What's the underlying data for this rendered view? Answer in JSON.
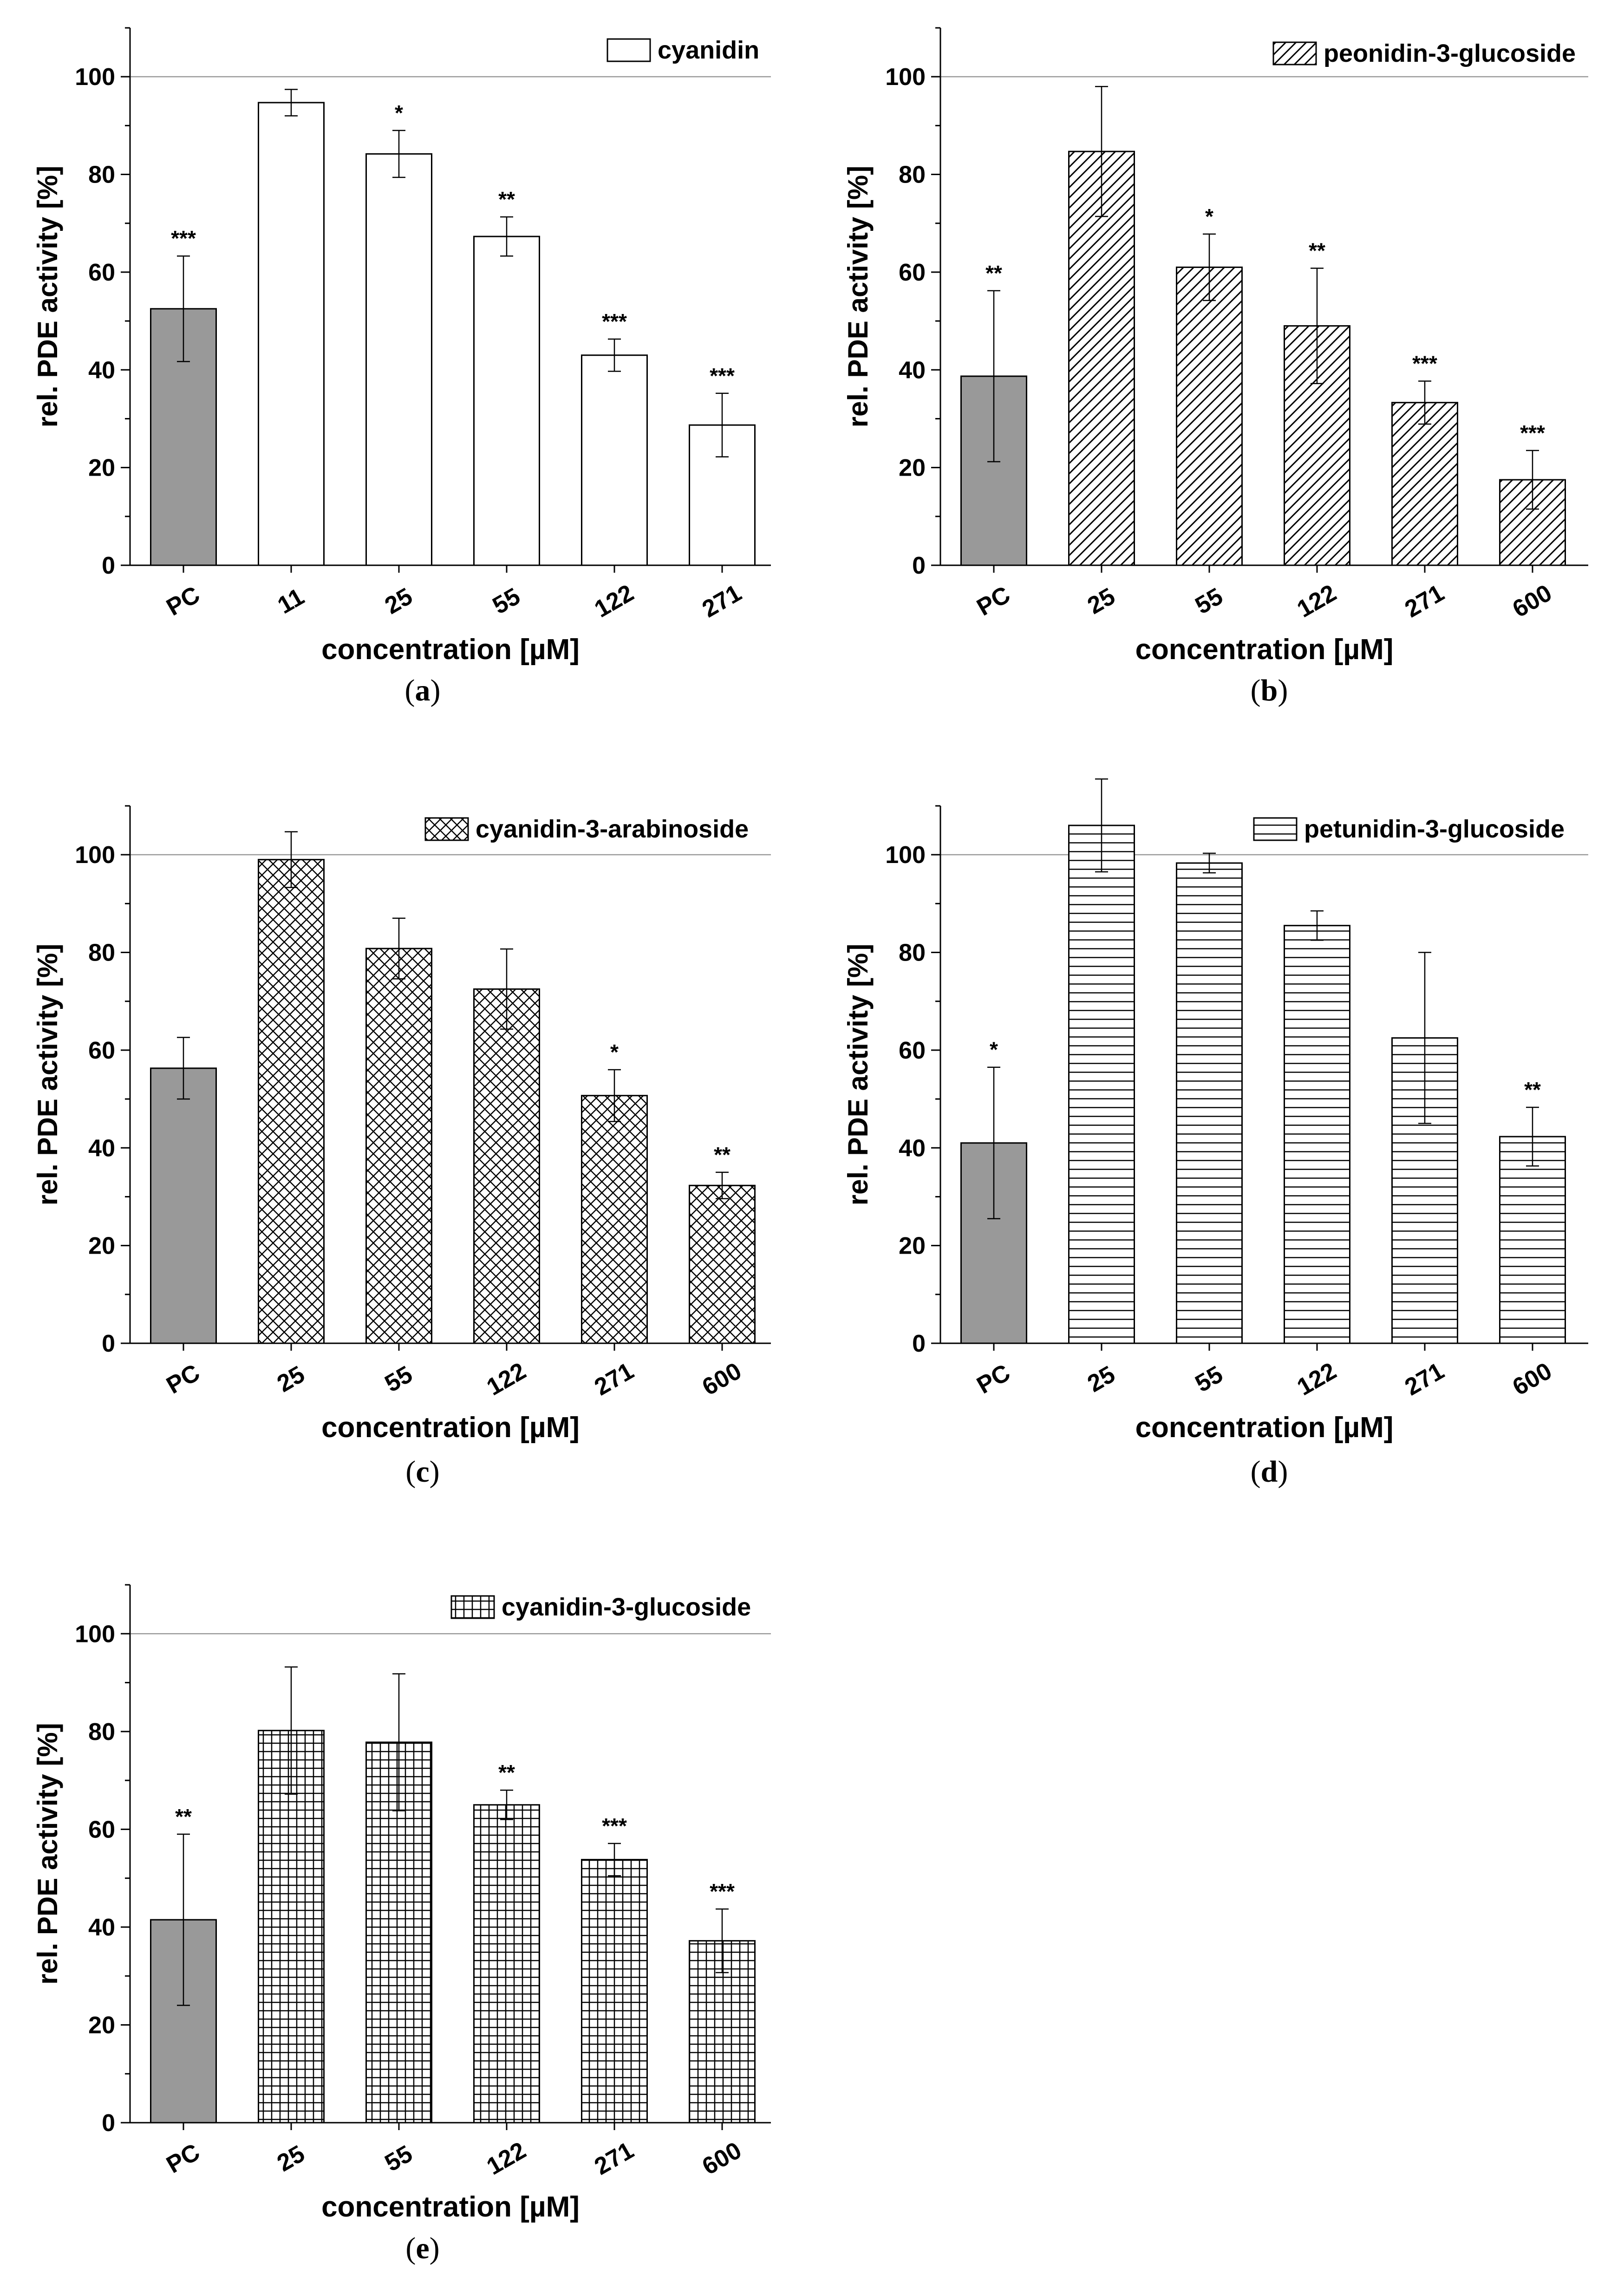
{
  "chart_data": [
    {
      "type": "bar",
      "panel_label": "a",
      "legend": "cyanidin",
      "pattern": "none",
      "categories": [
        "PC",
        "11",
        "25",
        "55",
        "122",
        "271"
      ],
      "values": [
        52.5,
        94.7,
        84.2,
        67.3,
        43.0,
        28.7
      ],
      "errors": [
        10.8,
        2.7,
        4.8,
        4.0,
        3.3,
        6.5
      ],
      "significance": [
        "***",
        "",
        "*",
        "**",
        "***",
        "***"
      ],
      "xlabel": "concentration [µM]",
      "ylabel": "rel. PDE activity [%]",
      "ylim": [
        0,
        110
      ],
      "yticks": [
        "0",
        "20",
        "40",
        "60",
        "80",
        "100"
      ],
      "reference_line": 100
    },
    {
      "type": "bar",
      "panel_label": "b",
      "legend": "peonidin-3-glucoside",
      "pattern": "diagonal",
      "categories": [
        "PC",
        "25",
        "55",
        "122",
        "271",
        "600"
      ],
      "values": [
        38.7,
        84.7,
        61.0,
        49.0,
        33.3,
        17.5
      ],
      "errors": [
        17.5,
        13.3,
        6.8,
        11.8,
        4.4,
        6.0
      ],
      "significance": [
        "**",
        "",
        "*",
        "**",
        "***",
        "***"
      ],
      "xlabel": "concentration [µM]",
      "ylabel": "rel. PDE activity [%]",
      "ylim": [
        0,
        110
      ],
      "yticks": [
        "0",
        "20",
        "40",
        "60",
        "80",
        "100"
      ],
      "reference_line": 100
    },
    {
      "type": "bar",
      "panel_label": "c",
      "legend": "cyanidin-3-arabinoside",
      "pattern": "crosshatch",
      "categories": [
        "PC",
        "25",
        "55",
        "122",
        "271",
        "600"
      ],
      "values": [
        56.3,
        99.0,
        80.8,
        72.5,
        50.7,
        32.3
      ],
      "errors": [
        6.3,
        5.7,
        6.2,
        8.2,
        5.3,
        2.7
      ],
      "significance": [
        "",
        "",
        "",
        "",
        "*",
        "**"
      ],
      "xlabel": "concentration [µM]",
      "ylabel": "rel. PDE activity [%]",
      "ylim": [
        0,
        110
      ],
      "yticks": [
        "0",
        "20",
        "40",
        "60",
        "80",
        "100"
      ],
      "reference_line": 100
    },
    {
      "type": "bar",
      "panel_label": "d",
      "legend": "petunidin-3-glucoside",
      "pattern": "horizontal",
      "categories": [
        "PC",
        "25",
        "55",
        "122",
        "271",
        "600"
      ],
      "values": [
        41.0,
        106.0,
        98.3,
        85.5,
        62.5,
        42.3
      ],
      "errors": [
        15.5,
        9.5,
        2.0,
        3.0,
        17.5,
        6.0
      ],
      "significance": [
        "*",
        "",
        "",
        "",
        "",
        "**"
      ],
      "xlabel": "concentration [µM]",
      "ylabel": "rel. PDE activity [%]",
      "ylim": [
        0,
        110
      ],
      "yticks": [
        "0",
        "20",
        "40",
        "60",
        "80",
        "100"
      ],
      "reference_line": 100
    },
    {
      "type": "bar",
      "panel_label": "e",
      "legend": "cyanidin-3-glucoside",
      "pattern": "grid",
      "categories": [
        "PC",
        "25",
        "55",
        "122",
        "271",
        "600"
      ],
      "values": [
        41.5,
        80.2,
        77.8,
        65.0,
        53.8,
        37.2
      ],
      "errors": [
        17.5,
        13.0,
        14.0,
        3.0,
        3.3,
        6.5
      ],
      "significance": [
        "**",
        "",
        "",
        "**",
        "***",
        "***"
      ],
      "xlabel": "concentration [µM]",
      "ylabel": "rel. PDE activity [%]",
      "ylim": [
        0,
        110
      ],
      "yticks": [
        "0",
        "20",
        "40",
        "60",
        "80",
        "100"
      ],
      "reference_line": 100
    }
  ]
}
